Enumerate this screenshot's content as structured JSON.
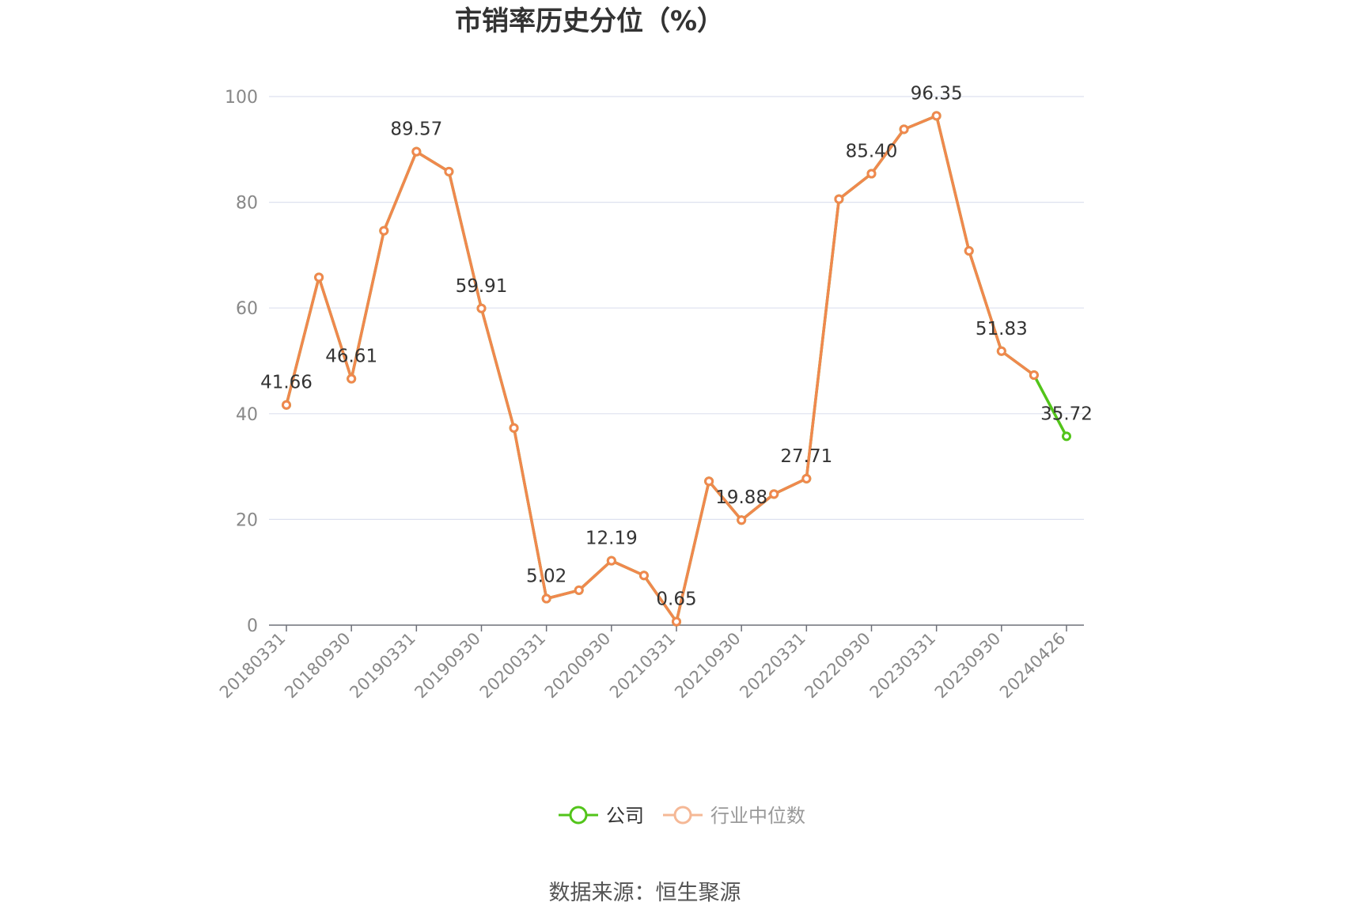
{
  "source_text": "数据来源：恒生聚源",
  "chart_data": {
    "type": "line",
    "title": "市销率历史分位（%）",
    "xlabel": "",
    "ylabel": "",
    "ylim": [
      0,
      100
    ],
    "y_ticks": [
      0,
      20,
      40,
      60,
      80,
      100
    ],
    "grid": true,
    "legend_position": "bottom-center",
    "x_tick_labels": [
      "20180331",
      "20180930",
      "20190331",
      "20190930",
      "20200331",
      "20200930",
      "20210331",
      "20210930",
      "20220331",
      "20220930",
      "20230331",
      "20230930",
      "20240426"
    ],
    "x": [
      "20180331",
      "20180630",
      "20180930",
      "20181231",
      "20190331",
      "20190630",
      "20190930",
      "20191231",
      "20200331",
      "20200630",
      "20200930",
      "20201231",
      "20210331",
      "20210630",
      "20210930",
      "20211231",
      "20220331",
      "20220630",
      "20220930",
      "20221231",
      "20230331",
      "20230630",
      "20230930",
      "20231231",
      "20240426"
    ],
    "series": [
      {
        "name": "公司",
        "color": "#52c41a",
        "values": [
          41.66,
          65.8,
          46.61,
          74.6,
          89.57,
          85.8,
          59.91,
          37.3,
          5.02,
          6.6,
          12.19,
          9.4,
          0.65,
          27.2,
          19.88,
          24.8,
          27.71,
          80.6,
          85.4,
          93.8,
          96.35,
          70.8,
          51.83,
          47.3,
          35.72
        ]
      },
      {
        "name": "行业中位数",
        "color": "#f0884e",
        "values": [
          41.66,
          65.8,
          46.61,
          74.6,
          89.57,
          85.8,
          59.91,
          37.3,
          5.02,
          6.6,
          12.19,
          9.4,
          0.65,
          27.2,
          19.88,
          24.8,
          27.71,
          80.6,
          85.4,
          93.8,
          96.35,
          70.8,
          51.83,
          47.3,
          null
        ]
      }
    ],
    "data_labels": [
      {
        "index": 0,
        "text": "41.66"
      },
      {
        "index": 2,
        "text": "46.61"
      },
      {
        "index": 4,
        "text": "89.57"
      },
      {
        "index": 6,
        "text": "59.91"
      },
      {
        "index": 8,
        "text": "5.02"
      },
      {
        "index": 10,
        "text": "12.19"
      },
      {
        "index": 12,
        "text": "0.65"
      },
      {
        "index": 14,
        "text": "19.88"
      },
      {
        "index": 16,
        "text": "27.71"
      },
      {
        "index": 18,
        "text": "85.40"
      },
      {
        "index": 20,
        "text": "96.35"
      },
      {
        "index": 22,
        "text": "51.83"
      },
      {
        "index": 24,
        "text": "35.72"
      }
    ],
    "legend": [
      {
        "name": "公司",
        "color": "#52c41a",
        "style": "active"
      },
      {
        "name": "行业中位数",
        "color": "#f0884e",
        "style": "faded"
      }
    ]
  }
}
